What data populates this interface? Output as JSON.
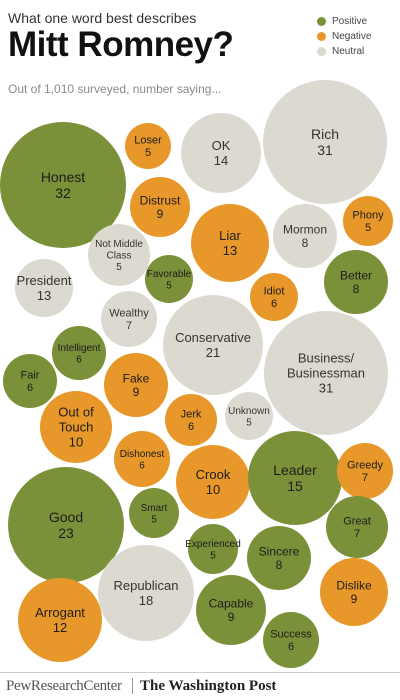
{
  "header": {
    "kicker": "What one word best describes",
    "title": "Mitt Romney?",
    "subtitle": "Out of 1,010 surveyed, number saying..."
  },
  "legend": [
    {
      "label": "Positive",
      "color": "#7a9139"
    },
    {
      "label": "Negative",
      "color": "#e8982a"
    },
    {
      "label": "Neutral",
      "color": "#dcdad0"
    }
  ],
  "footer": {
    "left": "PewResearchCenter",
    "right": "The Washington Post"
  },
  "colors": {
    "positive": "#7a9139",
    "negative": "#e8982a",
    "neutral": "#dcdad0"
  },
  "chart_data": {
    "type": "bubble",
    "title": "Mitt Romney?",
    "subtitle": "Out of 1,010 surveyed, number saying...",
    "categories": [
      "Positive",
      "Negative",
      "Neutral"
    ],
    "words": [
      {
        "word": "Honest",
        "count": 32,
        "sentiment": "positive"
      },
      {
        "word": "Loser",
        "count": 5,
        "sentiment": "negative"
      },
      {
        "word": "OK",
        "count": 14,
        "sentiment": "neutral"
      },
      {
        "word": "Rich",
        "count": 31,
        "sentiment": "neutral"
      },
      {
        "word": "Distrust",
        "count": 9,
        "sentiment": "negative"
      },
      {
        "word": "Liar",
        "count": 13,
        "sentiment": "negative"
      },
      {
        "word": "Mormon",
        "count": 8,
        "sentiment": "neutral"
      },
      {
        "word": "Phony",
        "count": 5,
        "sentiment": "negative"
      },
      {
        "word": "Not Middle Class",
        "count": 5,
        "sentiment": "neutral"
      },
      {
        "word": "Favorable",
        "count": 5,
        "sentiment": "positive"
      },
      {
        "word": "President",
        "count": 13,
        "sentiment": "neutral"
      },
      {
        "word": "Idiot",
        "count": 6,
        "sentiment": "negative"
      },
      {
        "word": "Better",
        "count": 8,
        "sentiment": "positive"
      },
      {
        "word": "Wealthy",
        "count": 7,
        "sentiment": "neutral"
      },
      {
        "word": "Conservative",
        "count": 21,
        "sentiment": "neutral"
      },
      {
        "word": "Intelligent",
        "count": 6,
        "sentiment": "positive"
      },
      {
        "word": "Fair",
        "count": 6,
        "sentiment": "positive"
      },
      {
        "word": "Fake",
        "count": 9,
        "sentiment": "negative"
      },
      {
        "word": "Business/ Businessman",
        "count": 31,
        "sentiment": "neutral"
      },
      {
        "word": "Out of Touch",
        "count": 10,
        "sentiment": "negative"
      },
      {
        "word": "Jerk",
        "count": 6,
        "sentiment": "negative"
      },
      {
        "word": "Unknown",
        "count": 5,
        "sentiment": "neutral"
      },
      {
        "word": "Dishonest",
        "count": 6,
        "sentiment": "negative"
      },
      {
        "word": "Crook",
        "count": 10,
        "sentiment": "negative"
      },
      {
        "word": "Leader",
        "count": 15,
        "sentiment": "positive"
      },
      {
        "word": "Greedy",
        "count": 7,
        "sentiment": "negative"
      },
      {
        "word": "Good",
        "count": 23,
        "sentiment": "positive"
      },
      {
        "word": "Smart",
        "count": 5,
        "sentiment": "positive"
      },
      {
        "word": "Experienced",
        "count": 5,
        "sentiment": "positive"
      },
      {
        "word": "Great",
        "count": 7,
        "sentiment": "positive"
      },
      {
        "word": "Sincere",
        "count": 8,
        "sentiment": "positive"
      },
      {
        "word": "Republican",
        "count": 18,
        "sentiment": "neutral"
      },
      {
        "word": "Dislike",
        "count": 9,
        "sentiment": "negative"
      },
      {
        "word": "Arrogant",
        "count": 12,
        "sentiment": "negative"
      },
      {
        "word": "Capable",
        "count": 9,
        "sentiment": "positive"
      },
      {
        "word": "Success",
        "count": 6,
        "sentiment": "positive"
      }
    ]
  }
}
